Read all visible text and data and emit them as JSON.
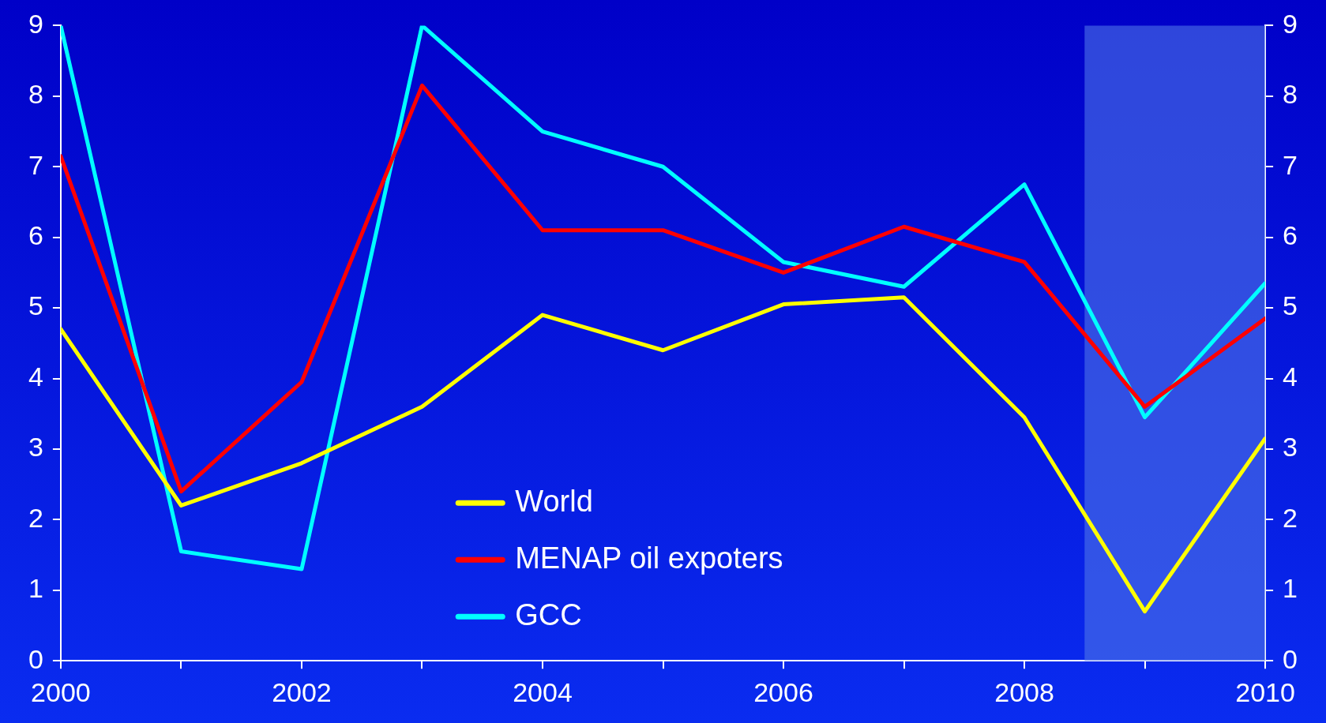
{
  "chart_data": {
    "type": "line",
    "x": [
      2000,
      2001,
      2002,
      2003,
      2004,
      2005,
      2006,
      2007,
      2008,
      2009,
      2010
    ],
    "series": [
      {
        "name": "World",
        "color": "#ffff00",
        "values": [
          4.7,
          2.2,
          2.8,
          3.6,
          4.9,
          4.4,
          5.05,
          5.15,
          3.45,
          0.7,
          3.15
        ]
      },
      {
        "name": "MENAP oil expoters",
        "color": "#ff0000",
        "values": [
          7.15,
          2.4,
          3.95,
          8.15,
          6.1,
          6.1,
          5.5,
          6.15,
          5.65,
          3.6,
          4.85
        ]
      },
      {
        "name": "GCC",
        "color": "#00ffff",
        "values": [
          9,
          1.55,
          1.3,
          9,
          7.5,
          7.0,
          5.65,
          5.3,
          6.75,
          3.45,
          5.35
        ]
      }
    ],
    "xlim": [
      2000,
      2010
    ],
    "xticks": [
      2000,
      {
        "value": 2001,
        "label": null
      },
      2002,
      {
        "value": 2003,
        "label": null
      },
      2004,
      {
        "value": 2005,
        "label": null
      },
      2006,
      {
        "value": 2007,
        "label": null
      },
      2008,
      {
        "value": 2009,
        "label": null
      },
      2010
    ],
    "ylim": [
      0,
      9
    ],
    "yticks": [
      0,
      1,
      2,
      3,
      4,
      5,
      6,
      7,
      8,
      9
    ],
    "y2lim": [
      0,
      9
    ],
    "y2ticks": [
      0,
      1,
      2,
      3,
      4,
      5,
      6,
      7,
      8,
      9
    ],
    "bands": [
      {
        "axis": "x",
        "from": 2008.5,
        "to": 2010,
        "color": "#4f74e8"
      }
    ],
    "grid": false,
    "legend": "bottom",
    "marker": "none",
    "line_style": "solid"
  }
}
